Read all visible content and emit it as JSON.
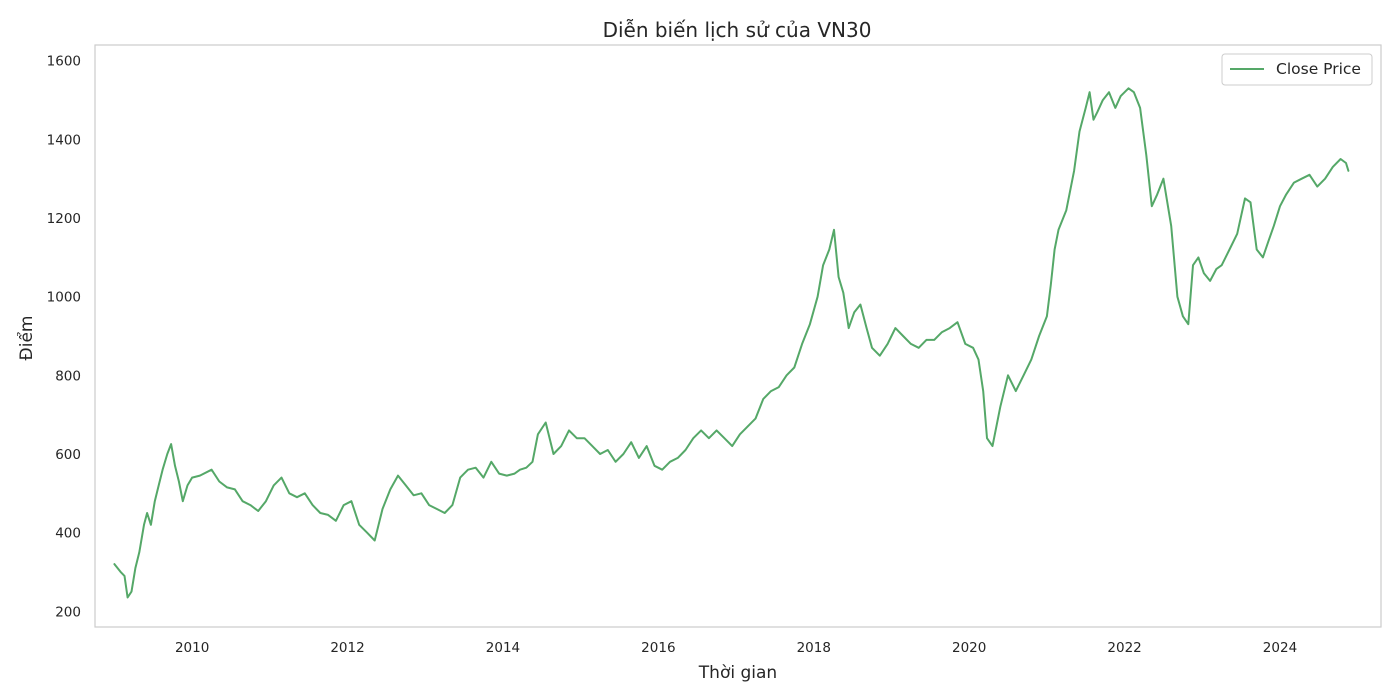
{
  "chart_data": {
    "type": "line",
    "title": "Diễn biến lịch sử của VN30",
    "xlabel": "Thời gian",
    "ylabel": "Điểm",
    "xlim": [
      2008.75,
      2025.3
    ],
    "ylim": [
      160,
      1640
    ],
    "grid": false,
    "legend_position": "top-right",
    "x_ticks": [
      2010,
      2012,
      2014,
      2016,
      2018,
      2020,
      2022,
      2024
    ],
    "x_tick_labels": [
      "2010",
      "2012",
      "2014",
      "2016",
      "2018",
      "2020",
      "2022",
      "2024"
    ],
    "y_ticks": [
      200,
      400,
      600,
      800,
      1000,
      1200,
      1400,
      1600
    ],
    "y_tick_labels": [
      "200",
      "400",
      "600",
      "800",
      "1000",
      "1200",
      "1400",
      "1600"
    ],
    "series": [
      {
        "name": "Close Price",
        "color": "#55a868",
        "x": [
          2009.0,
          2009.08,
          2009.13,
          2009.17,
          2009.22,
          2009.27,
          2009.32,
          2009.38,
          2009.42,
          2009.47,
          2009.52,
          2009.57,
          2009.62,
          2009.68,
          2009.73,
          2009.78,
          2009.83,
          2009.88,
          2009.94,
          2010.0,
          2010.1,
          2010.25,
          2010.35,
          2010.45,
          2010.55,
          2010.65,
          2010.75,
          2010.85,
          2010.95,
          2011.05,
          2011.15,
          2011.25,
          2011.35,
          2011.45,
          2011.55,
          2011.65,
          2011.75,
          2011.85,
          2011.95,
          2012.05,
          2012.15,
          2012.25,
          2012.35,
          2012.45,
          2012.55,
          2012.65,
          2012.75,
          2012.85,
          2012.95,
          2013.05,
          2013.15,
          2013.25,
          2013.35,
          2013.45,
          2013.55,
          2013.65,
          2013.75,
          2013.85,
          2013.95,
          2014.05,
          2014.15,
          2014.22,
          2014.3,
          2014.38,
          2014.45,
          2014.55,
          2014.65,
          2014.75,
          2014.85,
          2014.95,
          2015.05,
          2015.15,
          2015.25,
          2015.35,
          2015.45,
          2015.55,
          2015.65,
          2015.75,
          2015.85,
          2015.95,
          2016.05,
          2016.15,
          2016.25,
          2016.35,
          2016.45,
          2016.55,
          2016.65,
          2016.75,
          2016.85,
          2016.95,
          2017.05,
          2017.15,
          2017.25,
          2017.35,
          2017.45,
          2017.55,
          2017.65,
          2017.75,
          2017.85,
          2017.95,
          2018.05,
          2018.12,
          2018.2,
          2018.26,
          2018.32,
          2018.38,
          2018.45,
          2018.52,
          2018.6,
          2018.68,
          2018.75,
          2018.85,
          2018.95,
          2019.05,
          2019.15,
          2019.25,
          2019.35,
          2019.45,
          2019.55,
          2019.65,
          2019.75,
          2019.85,
          2019.95,
          2020.05,
          2020.12,
          2020.18,
          2020.23,
          2020.3,
          2020.4,
          2020.5,
          2020.6,
          2020.7,
          2020.8,
          2020.9,
          2021.0,
          2021.05,
          2021.1,
          2021.15,
          2021.25,
          2021.35,
          2021.42,
          2021.5,
          2021.55,
          2021.6,
          2021.65,
          2021.72,
          2021.8,
          2021.88,
          2021.95,
          2022.05,
          2022.12,
          2022.2,
          2022.28,
          2022.35,
          2022.42,
          2022.5,
          2022.6,
          2022.68,
          2022.75,
          2022.82,
          2022.88,
          2022.95,
          2023.02,
          2023.1,
          2023.18,
          2023.25,
          2023.35,
          2023.45,
          2023.55,
          2023.62,
          2023.7,
          2023.78,
          2023.85,
          2023.92,
          2024.0,
          2024.08,
          2024.18,
          2024.28,
          2024.38,
          2024.48,
          2024.58,
          2024.68,
          2024.78,
          2024.85,
          2024.88
        ],
        "y": [
          320,
          300,
          290,
          235,
          250,
          310,
          350,
          420,
          450,
          420,
          480,
          520,
          560,
          600,
          625,
          570,
          530,
          480,
          520,
          540,
          545,
          560,
          530,
          515,
          510,
          480,
          470,
          455,
          480,
          520,
          540,
          500,
          490,
          500,
          470,
          450,
          445,
          430,
          470,
          480,
          420,
          400,
          380,
          460,
          510,
          545,
          520,
          495,
          500,
          470,
          460,
          450,
          470,
          540,
          560,
          565,
          540,
          580,
          550,
          545,
          550,
          560,
          565,
          580,
          650,
          680,
          600,
          620,
          660,
          640,
          640,
          620,
          600,
          610,
          580,
          600,
          630,
          590,
          620,
          570,
          560,
          580,
          590,
          610,
          640,
          660,
          640,
          660,
          640,
          620,
          650,
          670,
          690,
          740,
          760,
          770,
          800,
          820,
          880,
          930,
          1000,
          1080,
          1120,
          1170,
          1050,
          1010,
          920,
          960,
          980,
          920,
          870,
          850,
          880,
          920,
          900,
          880,
          870,
          890,
          890,
          910,
          920,
          935,
          880,
          870,
          840,
          760,
          640,
          620,
          720,
          800,
          760,
          800,
          840,
          900,
          950,
          1030,
          1120,
          1170,
          1220,
          1320,
          1420,
          1480,
          1520,
          1450,
          1470,
          1500,
          1520,
          1480,
          1510,
          1530,
          1520,
          1480,
          1360,
          1230,
          1260,
          1300,
          1180,
          1000,
          950,
          930,
          1080,
          1100,
          1060,
          1040,
          1070,
          1080,
          1120,
          1160,
          1250,
          1240,
          1120,
          1100,
          1140,
          1180,
          1230,
          1260,
          1290,
          1300,
          1310,
          1280,
          1300,
          1330,
          1350,
          1340,
          1320
        ]
      }
    ]
  }
}
